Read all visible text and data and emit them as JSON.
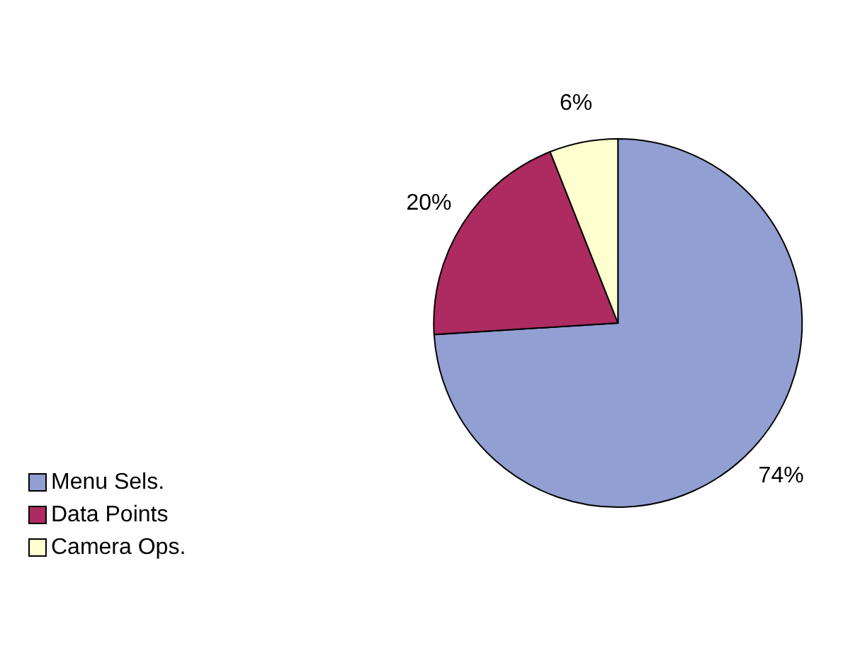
{
  "chart_data": {
    "type": "pie",
    "categories": [
      "Menu Sels.",
      "Data Points",
      "Camera Ops."
    ],
    "values": [
      74,
      20,
      6
    ],
    "value_labels": [
      "74%",
      "20%",
      "6%"
    ],
    "colors": [
      "#929fd3",
      "#ad2b60",
      "#ffffd0"
    ],
    "legend": "bottom left"
  }
}
